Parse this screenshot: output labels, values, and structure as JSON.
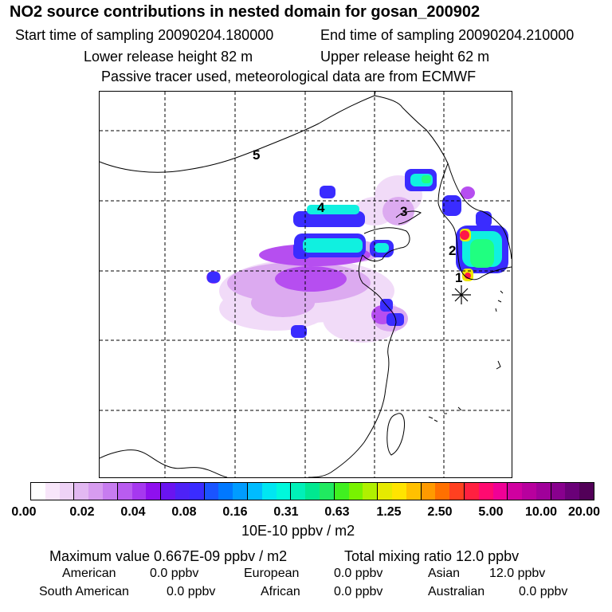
{
  "header": {
    "title": "NO2 source contributions in nested domain for gosan_200902",
    "start_time": "Start time of sampling 20090204.180000",
    "end_time": "End time of sampling 20090204.210000",
    "lower_release": "Lower release height   82 m",
    "upper_release": "Upper release height   62 m",
    "passive_note": "Passive tracer used, meteorological data are from ECMWF"
  },
  "map": {
    "trajectory_labels": [
      "1",
      "2",
      "3",
      "4",
      "5"
    ],
    "receptor_marker": "asterisk",
    "plume_colors": {
      "faint": "#f0d8f8",
      "light": "#dcaaf0",
      "mid": "#b64ef0",
      "violet": "#9a18ee",
      "blue": "#3a2cff",
      "cyan": "#10f0e0",
      "green": "#20ff80",
      "yellow": "#f0e800",
      "red": "#ff1848"
    }
  },
  "colorbar": {
    "colors": [
      "#ffffff",
      "#f8e6fa",
      "#eed2f6",
      "#e2b8f2",
      "#d79cf0",
      "#c77cf0",
      "#b95cf0",
      "#a638ef",
      "#8f10ee",
      "#6a14f0",
      "#4e22f6",
      "#3a2cff",
      "#1a54ff",
      "#0078ff",
      "#009cff",
      "#00bcff",
      "#00e6f2",
      "#00f8dc",
      "#00f0b8",
      "#00e890",
      "#20ea60",
      "#40f020",
      "#78f200",
      "#b0f000",
      "#e6ea00",
      "#ffe400",
      "#ffc000",
      "#ff9a00",
      "#ff7000",
      "#ff4020",
      "#ff2040",
      "#ff0a70",
      "#f00096",
      "#d000a0",
      "#b8009e",
      "#a0009a",
      "#88008e",
      "#6a0078",
      "#520058"
    ],
    "tick_labels": [
      "0.00",
      "0.02",
      "0.04",
      "0.08",
      "0.16",
      "0.31",
      "0.63",
      "1.25",
      "2.50",
      "5.00",
      "10.00",
      "20.00"
    ],
    "units": "10E-10 ppbv / m2"
  },
  "summary": {
    "max_value": "Maximum value  0.667E-09 ppbv / m2",
    "total_mixing": "Total mixing ratio       12.0 ppbv",
    "sources": [
      {
        "label": "American",
        "value": "0.0 ppbv"
      },
      {
        "label": "European",
        "value": "0.0 ppbv"
      },
      {
        "label": "Asian",
        "value": "12.0 ppbv"
      },
      {
        "label": "South American",
        "value": "0.0 ppbv"
      },
      {
        "label": "African",
        "value": "0.0 ppbv"
      },
      {
        "label": "Australian",
        "value": "0.0 ppbv"
      }
    ]
  }
}
